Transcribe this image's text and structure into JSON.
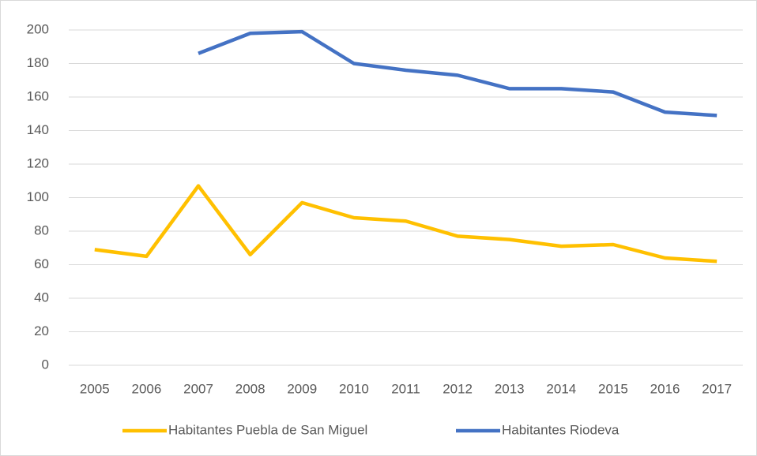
{
  "chart_data": {
    "type": "line",
    "categories": [
      "2005",
      "2006",
      "2007",
      "2008",
      "2009",
      "2010",
      "2011",
      "2012",
      "2013",
      "2014",
      "2015",
      "2016",
      "2017"
    ],
    "series": [
      {
        "name": "Habitantes Puebla de San Miguel",
        "color": "#ffc000",
        "values": [
          69,
          65,
          107,
          66,
          97,
          88,
          86,
          77,
          75,
          71,
          72,
          64,
          62
        ]
      },
      {
        "name": "Habitantes Riodeva",
        "color": "#4472c4",
        "values": [
          null,
          null,
          186,
          198,
          199,
          180,
          176,
          173,
          165,
          165,
          163,
          151,
          149
        ]
      }
    ],
    "ylim": [
      0,
      200
    ],
    "yticks": [
      0,
      20,
      40,
      60,
      80,
      100,
      120,
      140,
      160,
      180,
      200
    ],
    "grid": true,
    "legend": "bottom"
  }
}
